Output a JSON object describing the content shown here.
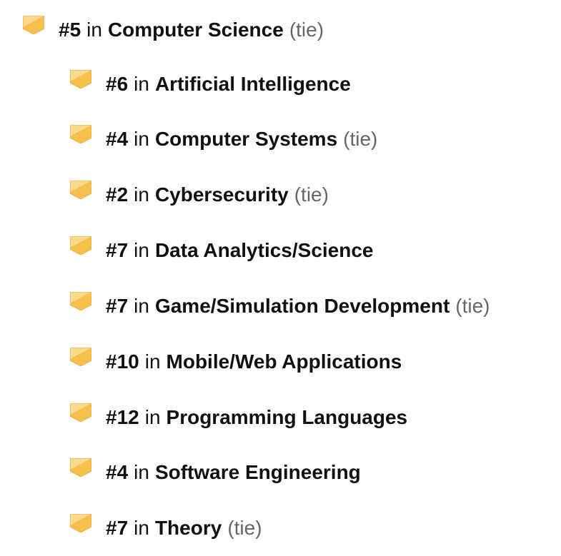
{
  "colors": {
    "badge_light": "#fdd98c",
    "badge_dark": "#f7bf4c",
    "tie": "#666666"
  },
  "rankings": [
    {
      "rank": "#5",
      "in": "in",
      "category": "Computer Science",
      "tie": "(tie)",
      "level": 0
    },
    {
      "rank": "#6",
      "in": "in",
      "category": "Artificial Intelligence",
      "tie": "",
      "level": 1
    },
    {
      "rank": "#4",
      "in": "in",
      "category": "Computer Systems",
      "tie": "(tie)",
      "level": 1
    },
    {
      "rank": "#2",
      "in": "in",
      "category": "Cybersecurity",
      "tie": "(tie)",
      "level": 1
    },
    {
      "rank": "#7",
      "in": "in",
      "category": "Data Analytics/Science",
      "tie": "",
      "level": 1
    },
    {
      "rank": "#7",
      "in": "in",
      "category": "Game/Simulation Development",
      "tie": "(tie)",
      "level": 1
    },
    {
      "rank": "#10",
      "in": "in",
      "category": "Mobile/Web Applications",
      "tie": "",
      "level": 1
    },
    {
      "rank": "#12",
      "in": "in",
      "category": "Programming Languages",
      "tie": "",
      "level": 1
    },
    {
      "rank": "#4",
      "in": "in",
      "category": "Software Engineering",
      "tie": "",
      "level": 1
    },
    {
      "rank": "#7",
      "in": "in",
      "category": "Theory",
      "tie": "(tie)",
      "level": 1
    }
  ]
}
